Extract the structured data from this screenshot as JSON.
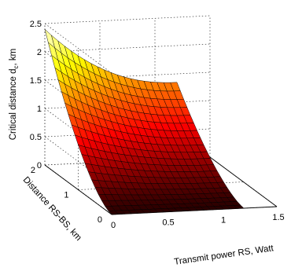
{
  "chart_data": {
    "type": "surface",
    "title": "",
    "xlabel": "Transmit power RS, Watt",
    "ylabel": "Distance RS-BS, km",
    "zlabel_main": "Critical distance d",
    "zlabel_sub": "c",
    "zlabel_unit": ", km",
    "xlim": [
      0,
      1.5
    ],
    "ylim": [
      0,
      2
    ],
    "zlim": [
      0,
      2.5
    ],
    "x_ticks": [
      "0",
      "0.5",
      "1",
      "1.5"
    ],
    "y_ticks": [
      "0",
      "1",
      "2"
    ],
    "z_ticks": [
      "0",
      "0.5",
      "1",
      "1.5",
      "2",
      "2.5"
    ],
    "x_ticks_values": [
      0,
      0.5,
      1,
      1.5
    ],
    "y_ticks_values": [
      0,
      1,
      2
    ],
    "z_ticks_values": [
      0,
      0.5,
      1,
      1.5,
      2,
      2.5
    ],
    "grid": true,
    "colormap": "hot",
    "surface": {
      "x_range": [
        0,
        1.2
      ],
      "y_range": [
        0,
        2
      ],
      "x_steps": 20,
      "y_steps": 20,
      "corner_values": {
        "x0_y0": 0,
        "x1.2_y0": 0,
        "x0_y2": 2.4,
        "x1.2_y2": 1.35
      }
    }
  }
}
